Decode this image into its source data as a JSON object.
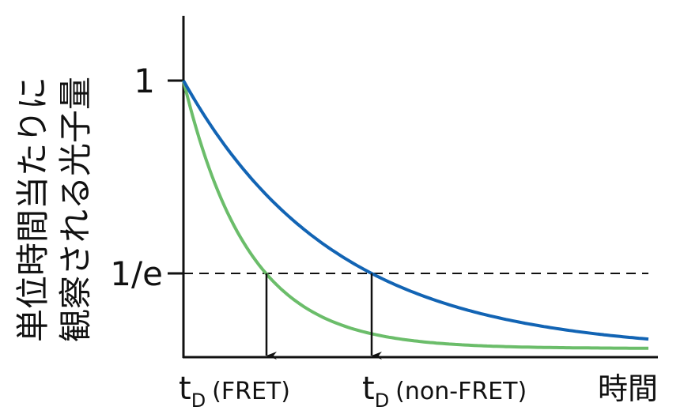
{
  "y_axis": {
    "label_lines": [
      "単位時間当たりに",
      "観察される光子量"
    ],
    "ticks": [
      "1",
      "1/e"
    ]
  },
  "x_axis": {
    "label": "時間",
    "markers": [
      {
        "symbol": "t",
        "subscript": "D",
        "note": "(FRET)"
      },
      {
        "symbol": "t",
        "subscript": "D",
        "note": "(non-FRET)"
      }
    ]
  }
}
